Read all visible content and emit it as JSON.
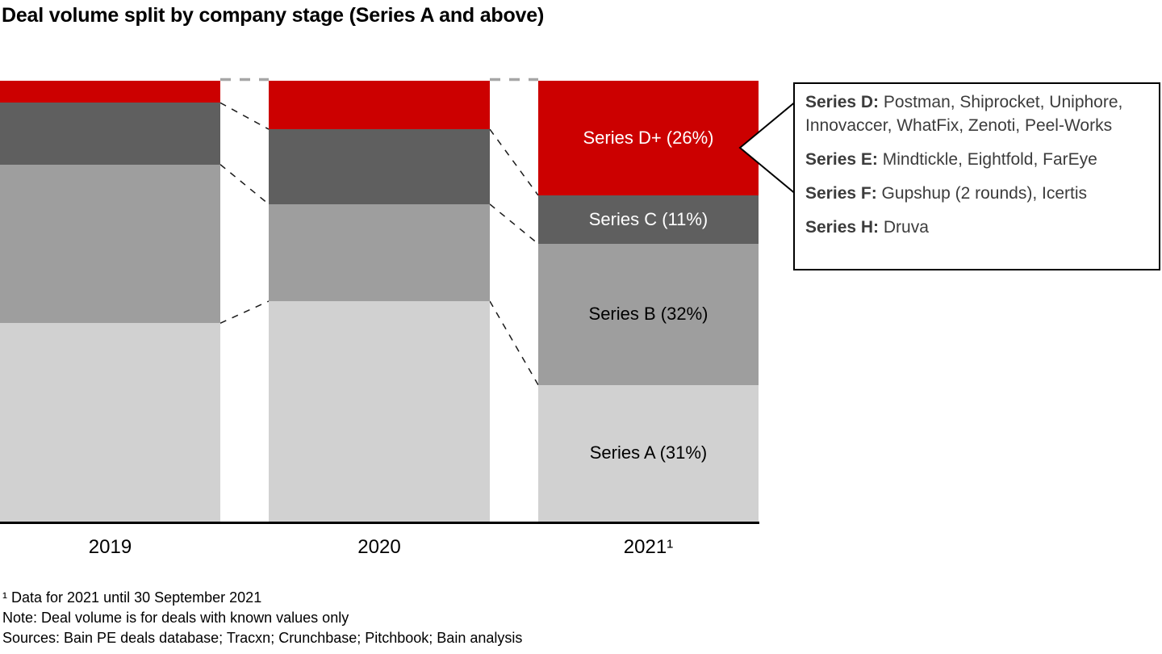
{
  "title": "Deal volume split by company stage (Series A and above)",
  "colors": {
    "stages": {
      "Series D+": "#cc0000",
      "Series C": "#5f5f5f",
      "Series B": "#9e9e9e",
      "Series A": "#d1d1d1"
    },
    "connector": "#1a1a1a",
    "top_connector": "#a6a6a6",
    "axis": "#000000",
    "callout_text": "#3c3c3c"
  },
  "chart_data": {
    "type": "bar",
    "subtype": "100pct-stacked-columns",
    "categories": [
      "2019",
      "2020",
      "2021¹"
    ],
    "stages_top_to_bottom": [
      "Series D+",
      "Series C",
      "Series B",
      "Series A"
    ],
    "legend_position": "none",
    "grid": false,
    "ylim": [
      0,
      100
    ],
    "bars": [
      {
        "year": "2019",
        "segments": [
          {
            "stage": "Series D+",
            "pct": 5,
            "label": "",
            "label_color": ""
          },
          {
            "stage": "Series C",
            "pct": 14,
            "label": "",
            "label_color": ""
          },
          {
            "stage": "Series B",
            "pct": 36,
            "label": "",
            "label_color": ""
          },
          {
            "stage": "Series A",
            "pct": 45,
            "label": "",
            "label_color": ""
          }
        ]
      },
      {
        "year": "2020",
        "segments": [
          {
            "stage": "Series D+",
            "pct": 11,
            "label": "",
            "label_color": ""
          },
          {
            "stage": "Series C",
            "pct": 17,
            "label": "",
            "label_color": ""
          },
          {
            "stage": "Series B",
            "pct": 22,
            "label": "",
            "label_color": ""
          },
          {
            "stage": "Series A",
            "pct": 50,
            "label": "",
            "label_color": ""
          }
        ]
      },
      {
        "year": "2021¹",
        "segments": [
          {
            "stage": "Series D+",
            "pct": 26,
            "label": "Series D+ (26%)",
            "label_color": "#ffffff"
          },
          {
            "stage": "Series C",
            "pct": 11,
            "label": "Series C (11%)",
            "label_color": "#ffffff"
          },
          {
            "stage": "Series B",
            "pct": 32,
            "label": "Series B (32%)",
            "label_color": "#000000"
          },
          {
            "stage": "Series A",
            "pct": 31,
            "label": "Series A (31%)",
            "label_color": "#000000"
          }
        ]
      }
    ]
  },
  "callout": {
    "entries": [
      {
        "label": "Series D:",
        "companies": " Postman, Shiprocket, Uniphore, Innovaccer, WhatFix, Zenoti, Peel-Works"
      },
      {
        "label": "Series E:",
        "companies": " Mindtickle, Eightfold, FarEye"
      },
      {
        "label": "Series F:",
        "companies": " Gupshup (2 rounds), Icertis"
      },
      {
        "label": "Series H:",
        "companies": " Druva"
      }
    ]
  },
  "footnotes": {
    "line1": "¹ Data for 2021 until 30 September 2021",
    "line2": "Note: Deal volume is for deals with known values only",
    "line3": "Sources: Bain PE deals database; Tracxn; Crunchbase; Pitchbook; Bain analysis"
  }
}
